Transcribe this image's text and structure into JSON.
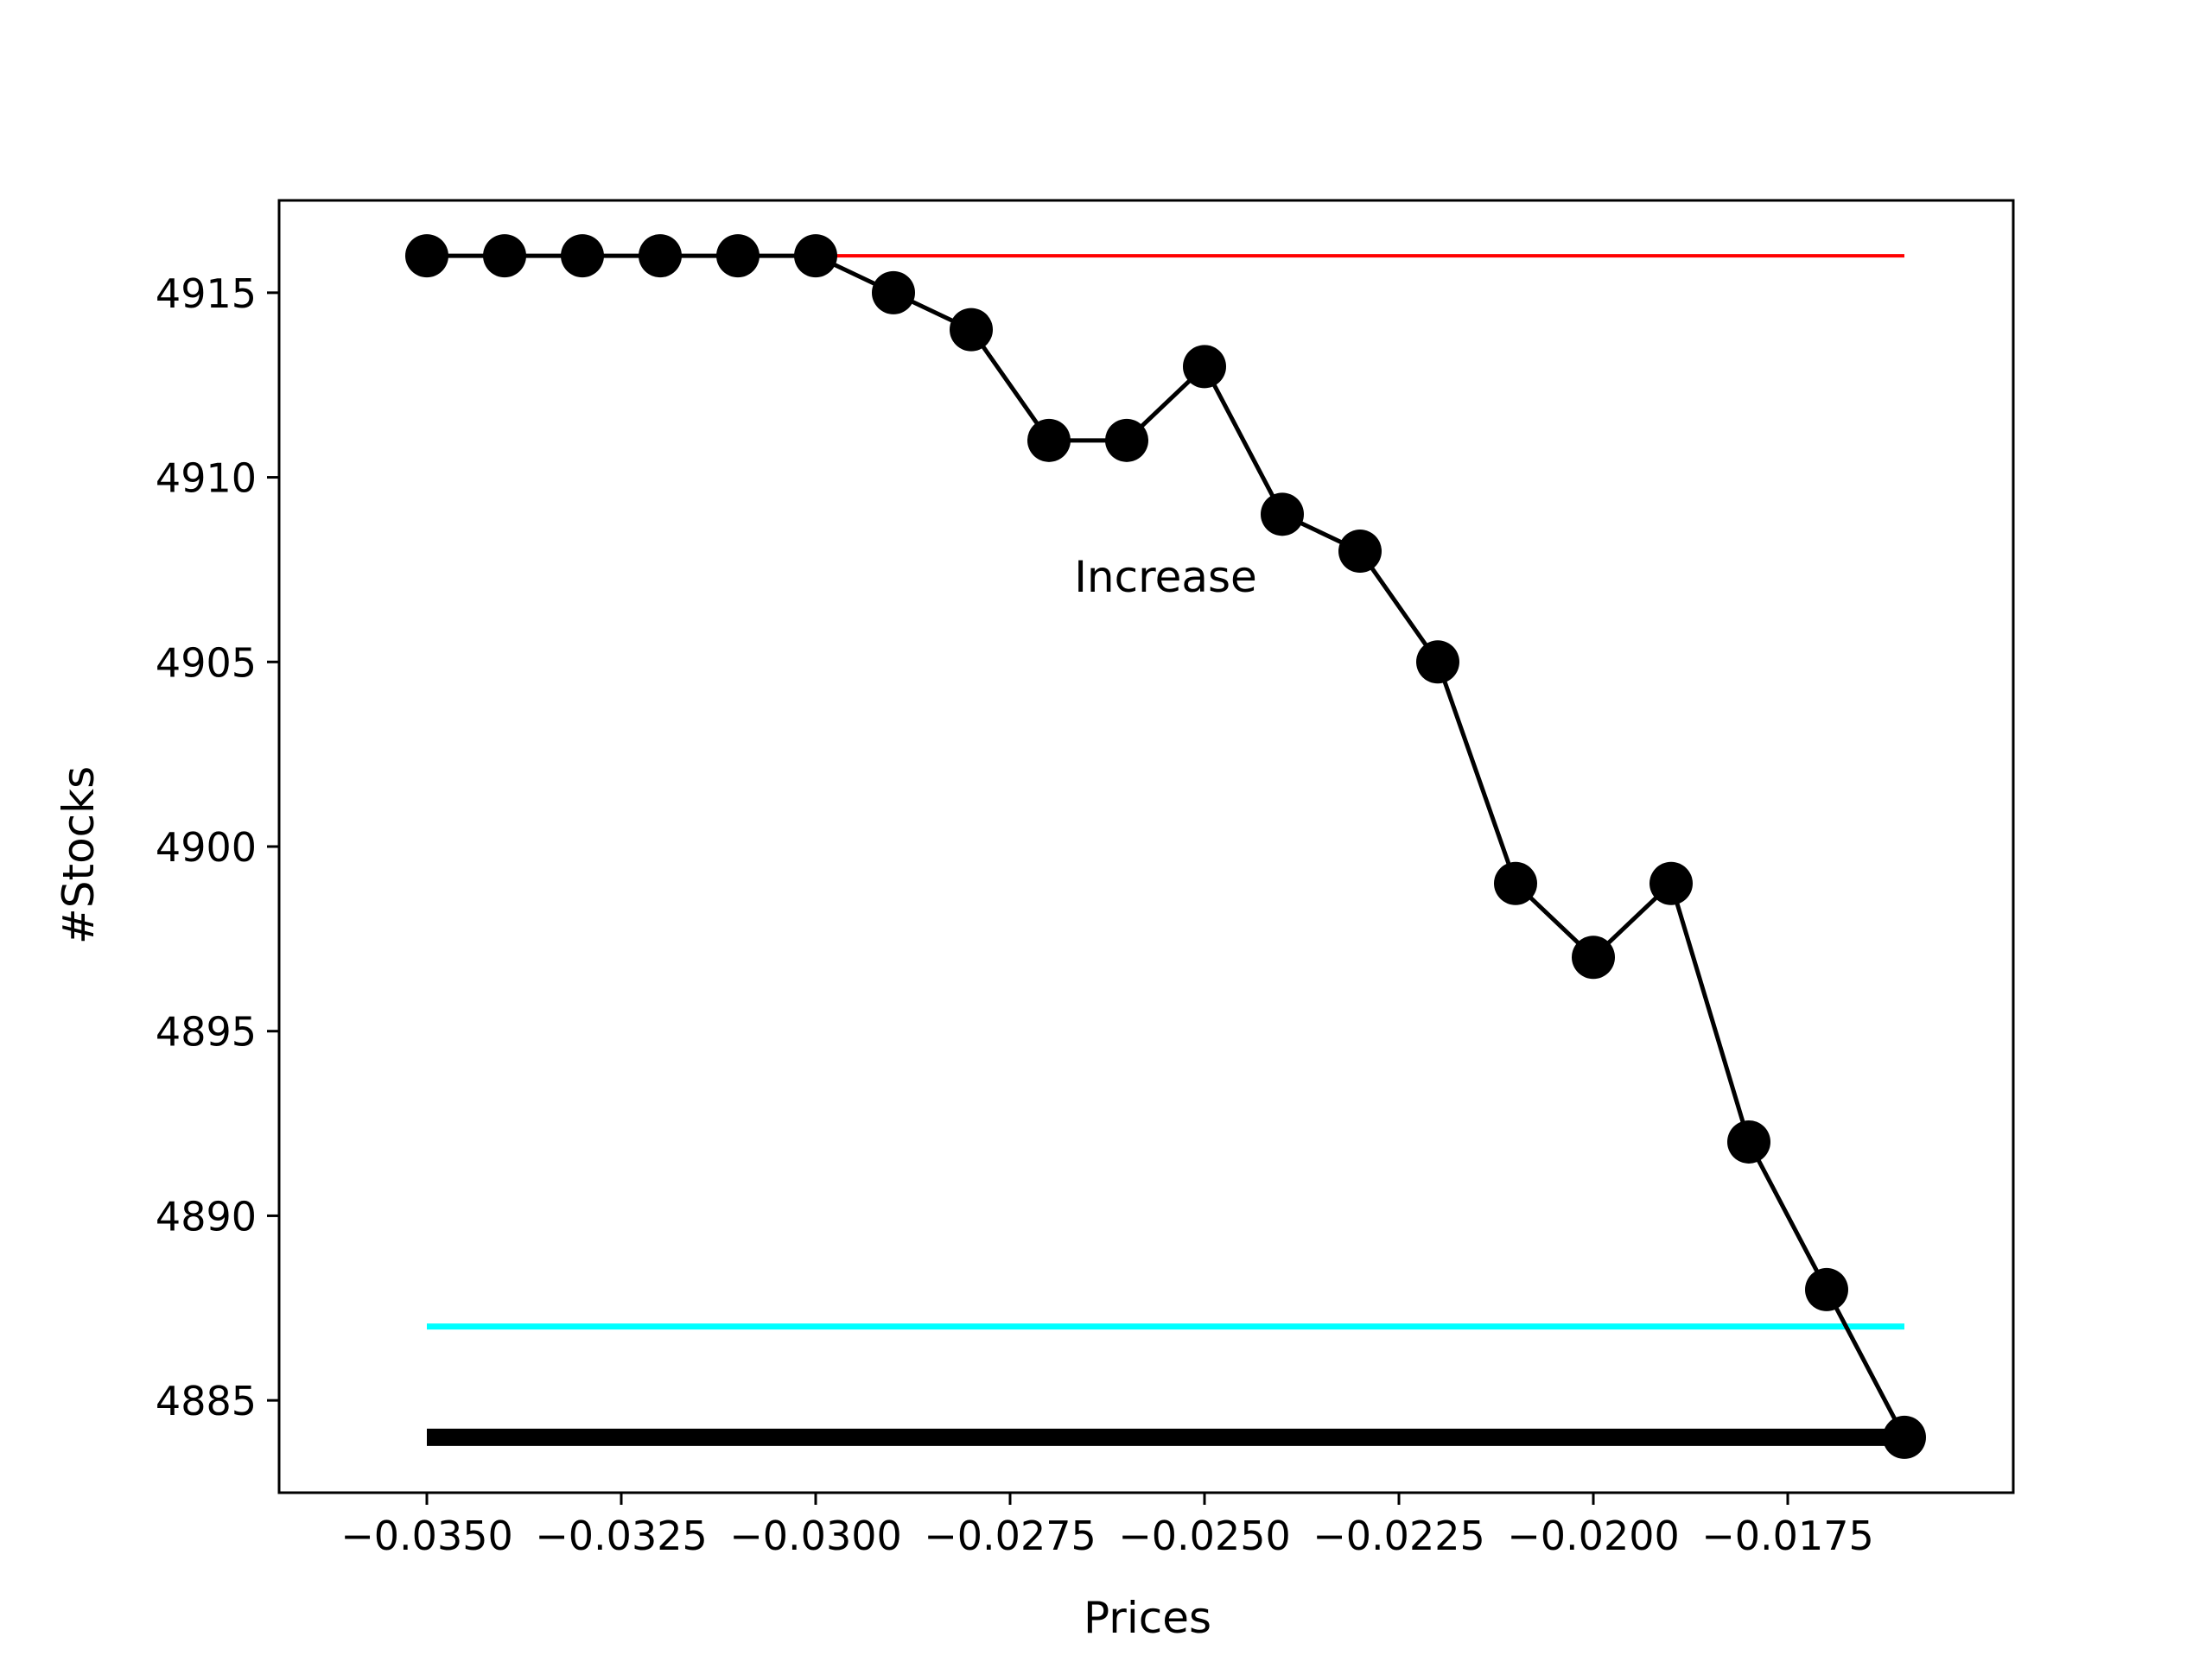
{
  "chart_data": {
    "type": "line",
    "title": "",
    "xlabel": "Prices",
    "ylabel": "#Stocks",
    "xlim": [
      -0.0369,
      -0.0146
    ],
    "ylim": [
      4882.5,
      4917.5
    ],
    "grid": false,
    "x_ticks": [
      {
        "value": -0.035,
        "label": "−0.0350"
      },
      {
        "value": -0.0325,
        "label": "−0.0325"
      },
      {
        "value": -0.03,
        "label": "−0.0300"
      },
      {
        "value": -0.0275,
        "label": "−0.0275"
      },
      {
        "value": -0.025,
        "label": "−0.0250"
      },
      {
        "value": -0.0225,
        "label": "−0.0225"
      },
      {
        "value": -0.02,
        "label": "−0.0200"
      },
      {
        "value": -0.0175,
        "label": "−0.0175"
      }
    ],
    "y_ticks": [
      {
        "value": 4885,
        "label": "4885"
      },
      {
        "value": 4890,
        "label": "4890"
      },
      {
        "value": 4895,
        "label": "4895"
      },
      {
        "value": 4900,
        "label": "4900"
      },
      {
        "value": 4905,
        "label": "4905"
      },
      {
        "value": 4910,
        "label": "4910"
      },
      {
        "value": 4915,
        "label": "4915"
      }
    ],
    "series": [
      {
        "color": "#000000",
        "marker": "circle",
        "x": [
          -0.035,
          -0.034,
          -0.033,
          -0.032,
          -0.031,
          -0.03,
          -0.029,
          -0.028,
          -0.027,
          -0.026,
          -0.025,
          -0.024,
          -0.023,
          -0.022,
          -0.021,
          -0.02,
          -0.019,
          -0.018,
          -0.017,
          -0.016
        ],
        "y": [
          4916,
          4916,
          4916,
          4916,
          4916,
          4916,
          4915,
          4914,
          4911,
          4911,
          4913,
          4909,
          4908,
          4905,
          4899,
          4897,
          4899,
          4892,
          4888,
          4884
        ]
      }
    ],
    "hlines": [
      {
        "y": 4916,
        "x_from": -0.03,
        "x_to": -0.016,
        "color": "#ff0000",
        "weight": "thin"
      },
      {
        "y": 4887,
        "x_from": -0.035,
        "x_to": -0.016,
        "color": "#00ffff",
        "weight": "medium"
      },
      {
        "y": 4884,
        "x_from": -0.035,
        "x_to": -0.016,
        "color": "#000000",
        "weight": "thick"
      }
    ],
    "annotations": [
      {
        "text": "Increase",
        "x": -0.0255,
        "y": 4907.3
      }
    ]
  }
}
